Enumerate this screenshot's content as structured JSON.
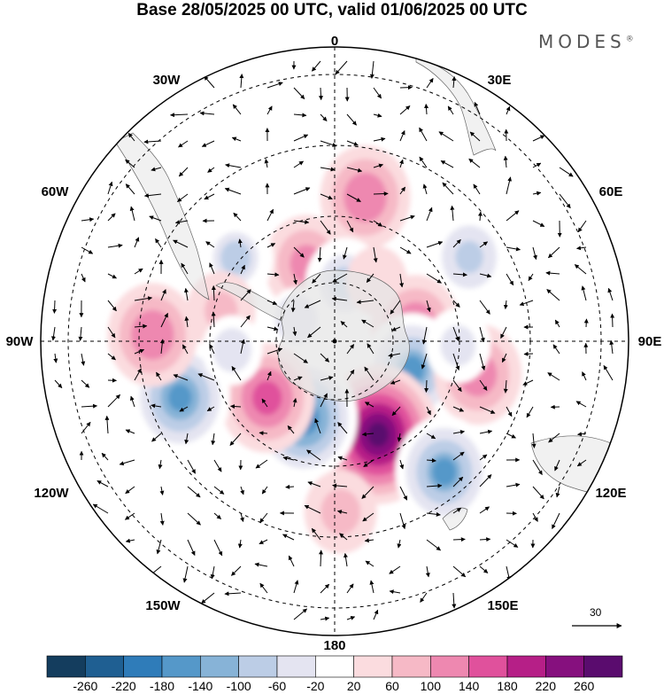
{
  "title": "Base 28/05/2025 00 UTC, valid 01/06/2025 00 UTC",
  "brand": {
    "name": "MODES",
    "mark": "®"
  },
  "map_labels": {
    "top": "0",
    "bottom": "180",
    "left": "90W",
    "right": "90E",
    "w30": "30W",
    "e30": "30E",
    "w60": "60W",
    "e60": "60E",
    "w120": "120W",
    "e120": "120E",
    "w150": "150W",
    "e150": "150E"
  },
  "vector_legend": {
    "value": "30"
  },
  "colorbar": {
    "ticks": [
      "-260",
      "-220",
      "-180",
      "-140",
      "-100",
      "-60",
      "-20",
      "20",
      "60",
      "100",
      "140",
      "180",
      "220",
      "260"
    ],
    "colors": [
      "#143d5e",
      "#1f5f92",
      "#2f7cb9",
      "#5598c9",
      "#87b3d7",
      "#bccde6",
      "#e4e4f1",
      "#ffffff",
      "#fbdcdf",
      "#f6b9c6",
      "#ee88b0",
      "#e0519c",
      "#b61f87",
      "#86107e",
      "#5a0c6e"
    ]
  },
  "anomaly_centers": [
    {
      "lon": 12,
      "colat": 50,
      "value": 130
    },
    {
      "lon": -20,
      "colat": 28,
      "value": 110
    },
    {
      "lon": -50,
      "colat": 44,
      "value": -80
    },
    {
      "lon": 10,
      "colat": 20,
      "value": -90
    },
    {
      "lon": 58,
      "colat": 54,
      "value": -100
    },
    {
      "lon": 35,
      "colat": 25,
      "value": 40
    },
    {
      "lon": 80,
      "colat": 28,
      "value": 130
    },
    {
      "lon": 110,
      "colat": 28,
      "value": -160
    },
    {
      "lon": 103,
      "colat": 50,
      "value": 120
    },
    {
      "lon": 92,
      "colat": 42,
      "value": -50
    },
    {
      "lon": 155,
      "colat": 35,
      "value": 260
    },
    {
      "lon": 140,
      "colat": 58,
      "value": -160
    },
    {
      "lon": -158,
      "colat": 28,
      "value": -200
    },
    {
      "lon": -130,
      "colat": 30,
      "value": 150
    },
    {
      "lon": -110,
      "colat": 56,
      "value": -170
    },
    {
      "lon": -88,
      "colat": 62,
      "value": 130
    },
    {
      "lon": -75,
      "colat": 40,
      "value": 60
    },
    {
      "lon": -95,
      "colat": 35,
      "value": -40
    },
    {
      "lon": 178,
      "colat": 58,
      "value": 70
    },
    {
      "lon": -60,
      "colat": 15,
      "value": -30
    }
  ]
}
